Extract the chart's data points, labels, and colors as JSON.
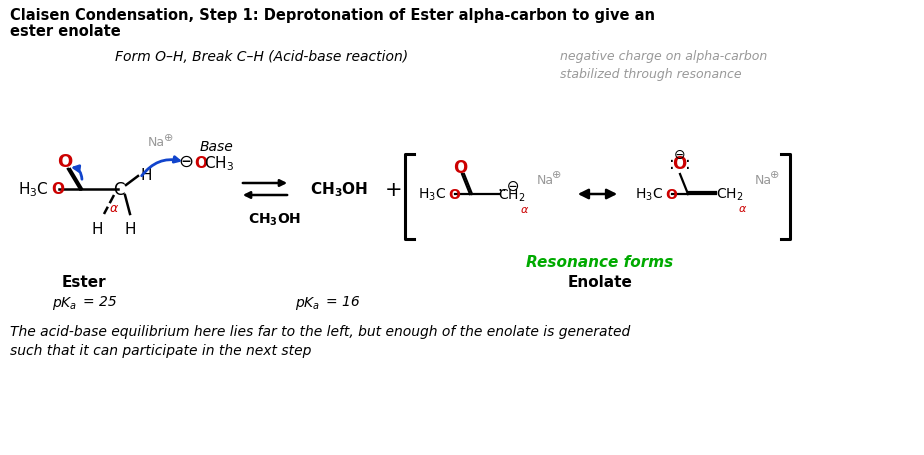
{
  "bg_color": "#ffffff",
  "black": "#000000",
  "red": "#cc0000",
  "gray": "#999999",
  "blue": "#1144cc",
  "green": "#00aa00",
  "title_line1": "Claisen Condensation, Step 1: Deprotonation of Ester alpha-carbon to give an",
  "title_line2": "ester enolate",
  "subtitle": "Form O–H, Break C–H (Acid-base reaction)",
  "gray_note_line1": "negative charge on alpha-carbon",
  "gray_note_line2": "stabilized through resonance",
  "base_label": "Base",
  "ch3oh_product": "CH₃OH",
  "ch3oh_below": "CH₃OH",
  "resonance_forms": "Resonance forms",
  "ester_label": "Ester",
  "enolate_label": "Enolate",
  "footer_line1": "The acid-base equilibrium here lies far to the left, but enough of the enolate is generated",
  "footer_line2": "such that it can participate in the next step"
}
